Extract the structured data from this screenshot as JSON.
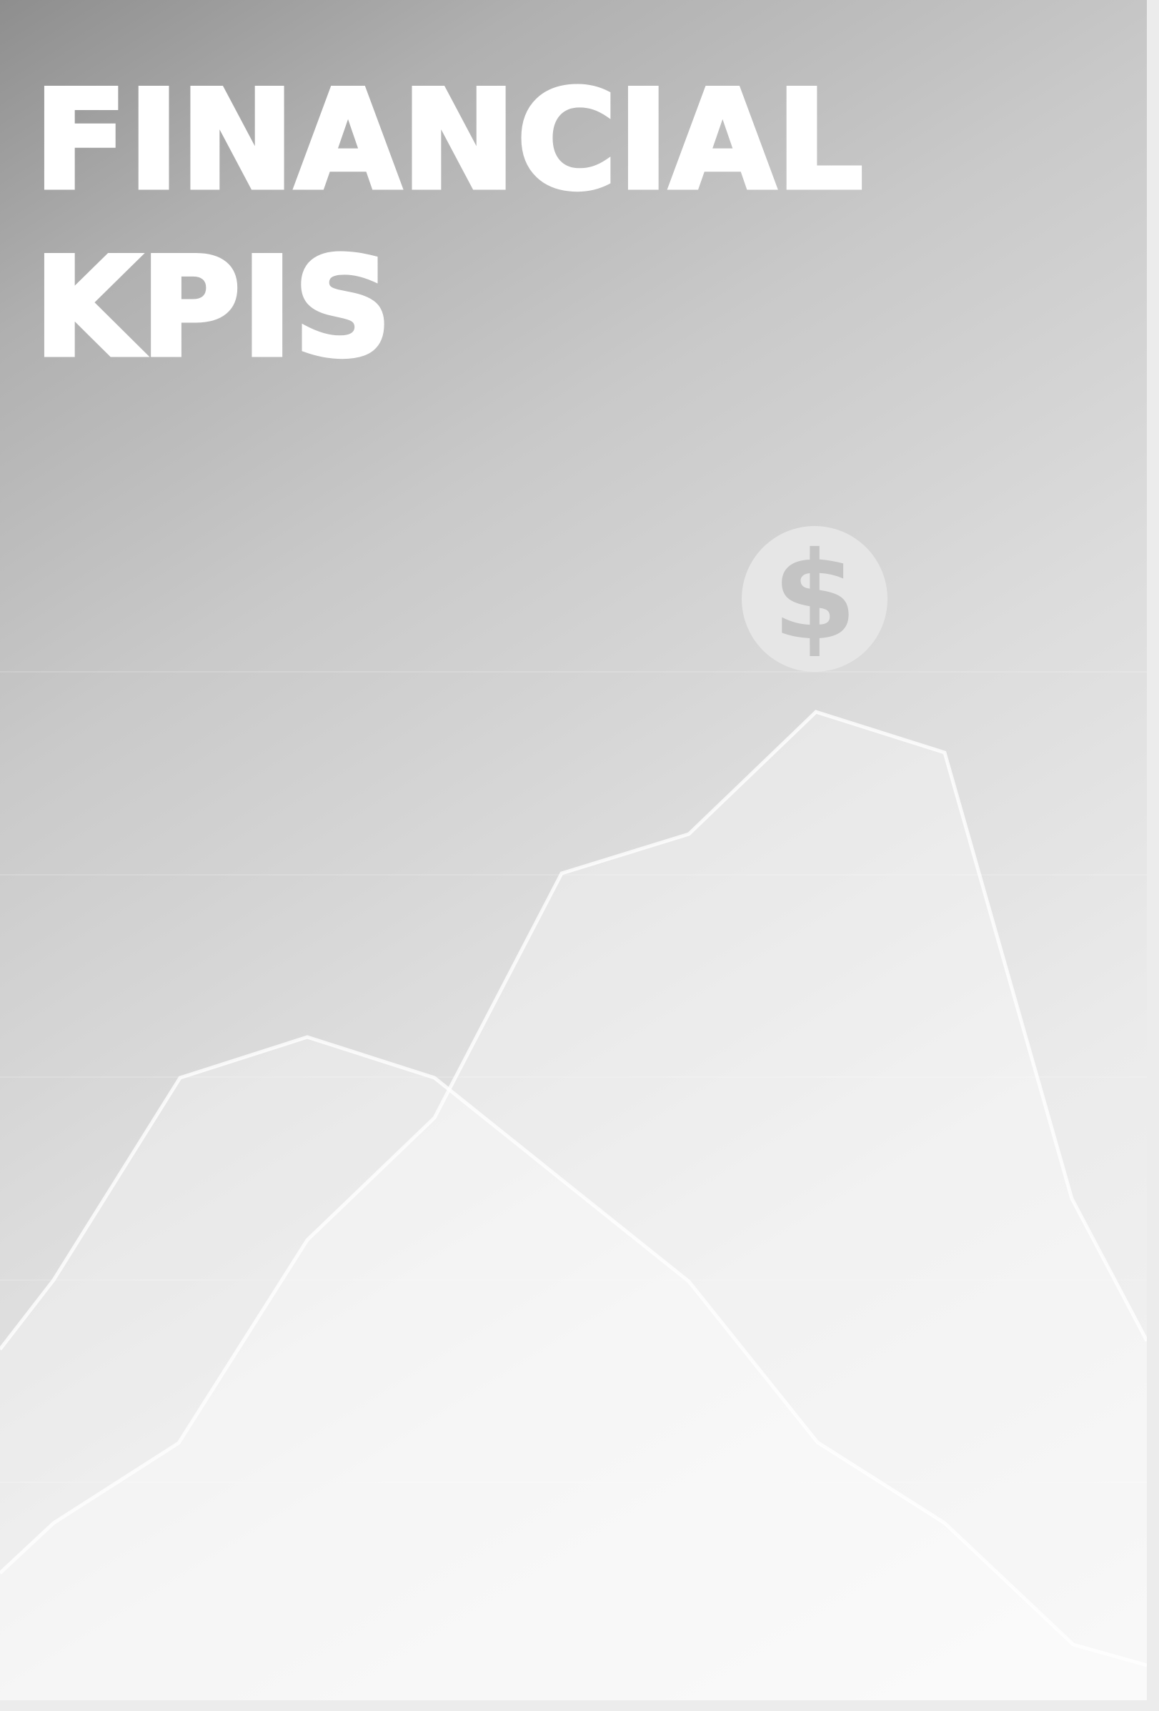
{
  "title": {
    "line1": "FINANCIAL",
    "line2": "KPIS"
  },
  "icon": "dollar-coin-icon",
  "colors": {
    "text": "#ffffff",
    "background_dark": "#8e8e8e",
    "background_light": "#f5f5f5",
    "icon": "#e6e6e6"
  }
}
